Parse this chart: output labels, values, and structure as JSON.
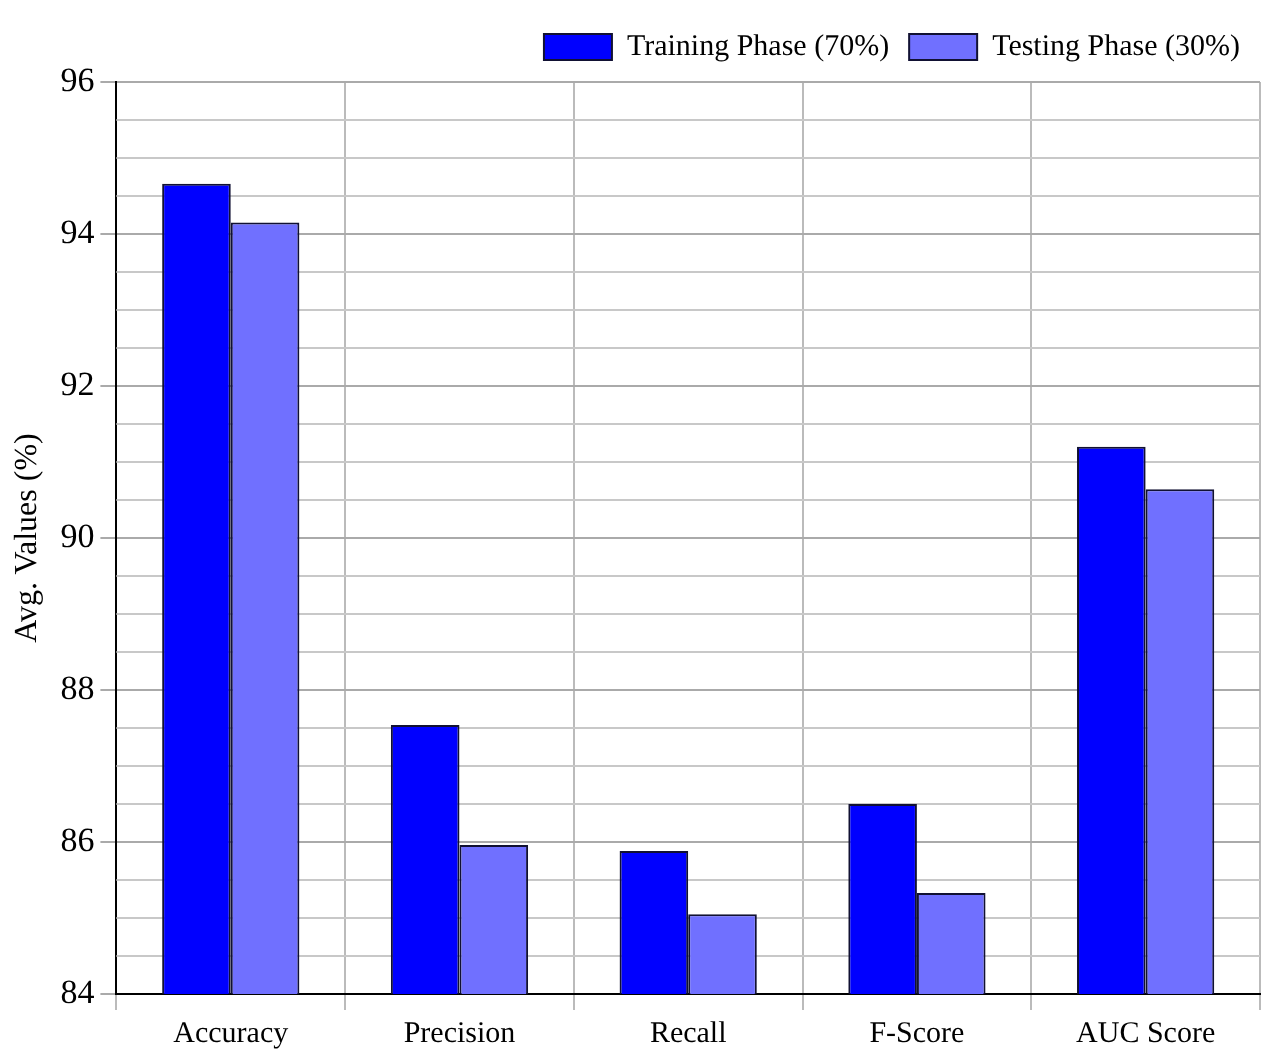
{
  "chart_data": {
    "type": "bar",
    "ylabel": "Avg. Values (%)",
    "categories": [
      "Accuracy",
      "Precision",
      "Recall",
      "F-Score",
      "AUC Score"
    ],
    "series": [
      {
        "name": "Training Phase (70%)",
        "color": "#0000ff",
        "values": [
          94.66,
          87.54,
          85.88,
          86.5,
          91.2
        ]
      },
      {
        "name": "Testing Phase (30%)",
        "color": "#7070ff",
        "values": [
          94.15,
          85.96,
          85.05,
          85.33,
          90.64
        ]
      }
    ],
    "ylim": [
      84,
      96
    ],
    "yticks": [
      84,
      86,
      88,
      90,
      92,
      94,
      96
    ],
    "grid": true,
    "legend": "top right"
  }
}
